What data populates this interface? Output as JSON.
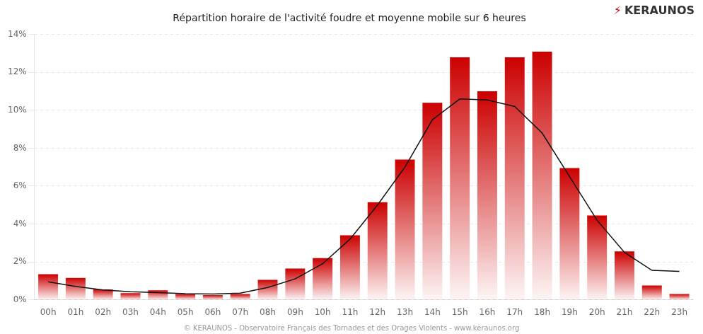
{
  "chart_data": {
    "type": "bar",
    "title": "Répartition horaire de l'activité foudre et moyenne mobile sur 6 heures",
    "categories": [
      "00h",
      "01h",
      "02h",
      "03h",
      "04h",
      "05h",
      "06h",
      "07h",
      "08h",
      "09h",
      "10h",
      "11h",
      "12h",
      "13h",
      "14h",
      "15h",
      "16h",
      "17h",
      "18h",
      "19h",
      "20h",
      "21h",
      "22h",
      "23h"
    ],
    "series": [
      {
        "type": "bar",
        "color": "#cc0000",
        "values": [
          1.35,
          1.15,
          0.55,
          0.35,
          0.5,
          0.3,
          0.25,
          0.3,
          1.05,
          1.65,
          2.2,
          3.4,
          5.15,
          7.4,
          10.4,
          12.8,
          11.0,
          12.8,
          13.1,
          6.95,
          4.45,
          2.55,
          0.75,
          0.3
        ]
      },
      {
        "type": "line",
        "color": "#111111",
        "marker": "none",
        "values": [
          0.95,
          0.7,
          0.52,
          0.42,
          0.38,
          0.32,
          0.3,
          0.35,
          0.65,
          1.1,
          1.9,
          3.2,
          5.0,
          7.0,
          9.5,
          10.6,
          10.55,
          10.2,
          8.8,
          6.5,
          4.2,
          2.5,
          1.55,
          1.5
        ]
      }
    ],
    "ylim": [
      0,
      14
    ],
    "yticks": [
      {
        "value": 0,
        "label": "0%"
      },
      {
        "value": 2,
        "label": "2%"
      },
      {
        "value": 4,
        "label": "4%"
      },
      {
        "value": 6,
        "label": "6%"
      },
      {
        "value": 8,
        "label": "8%"
      },
      {
        "value": 10,
        "label": "10%"
      },
      {
        "value": 12,
        "label": "12%"
      },
      {
        "value": 14,
        "label": "14%"
      }
    ],
    "grid": "y",
    "annotations": [
      {
        "text": "⚡",
        "color": "#cc0000"
      },
      {
        "text": "KERAUNOS",
        "color": "#333333"
      },
      {
        "text": "© KERAUNOS - Observatoire Français des Tornades et des Orages Violents - www.keraunos.org",
        "color": "#999999"
      }
    ]
  }
}
